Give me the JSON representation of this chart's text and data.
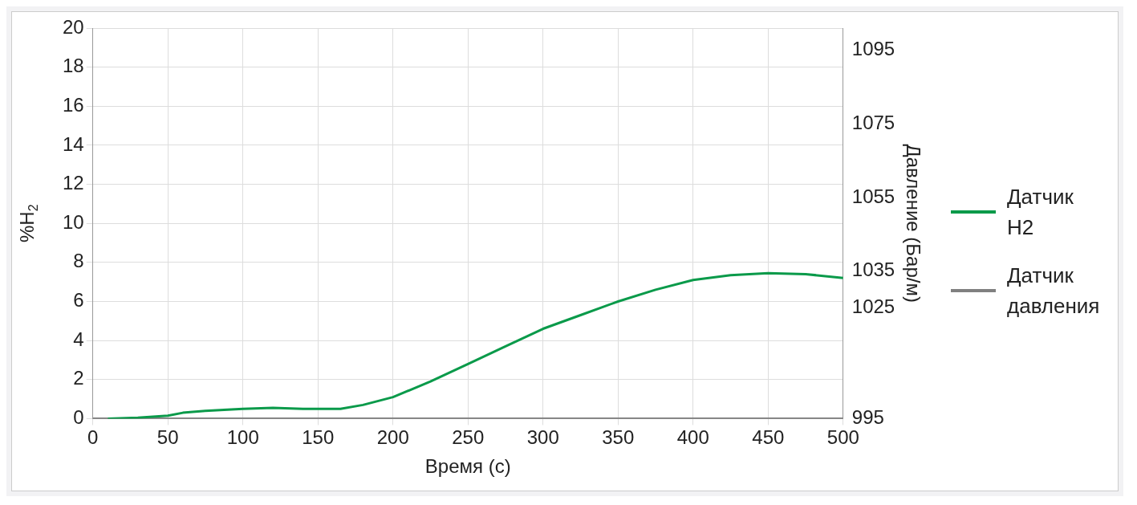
{
  "chart_data": {
    "type": "line",
    "xlabel": "Время (с)",
    "ylabel": "%H$_{2}$",
    "y2label": "Давление (Бар/м)",
    "xlim": [
      0,
      500
    ],
    "xticks": [
      0,
      50,
      100,
      150,
      200,
      250,
      300,
      350,
      400,
      450,
      500
    ],
    "ylim": [
      0,
      20
    ],
    "yticks": [
      0,
      2,
      4,
      6,
      8,
      10,
      12,
      14,
      16,
      18,
      20
    ],
    "y2lim": [
      995,
      1101
    ],
    "y2ticks": [
      995,
      1025,
      1035,
      1055,
      1075,
      1095
    ],
    "grid": true,
    "legend": "right",
    "marker": "none",
    "line_style": "solid",
    "series": [
      {
        "name": "Датчик H2",
        "color": "#0a9a4a",
        "x": [
          10,
          30,
          50,
          60,
          75,
          100,
          120,
          140,
          165,
          180,
          200,
          225,
          250,
          275,
          300,
          325,
          350,
          375,
          400,
          425,
          450,
          475,
          500
        ],
        "values": [
          0,
          0.05,
          0.15,
          0.3,
          0.4,
          0.5,
          0.55,
          0.5,
          0.5,
          0.7,
          1.1,
          1.9,
          2.8,
          3.7,
          4.6,
          5.3,
          6.0,
          6.6,
          7.1,
          7.35,
          7.45,
          7.4,
          7.2
        ]
      },
      {
        "name": "Датчик давления",
        "color": "#808080",
        "axis": "y2",
        "x": [
          0,
          500
        ],
        "values": [
          995,
          995
        ]
      }
    ]
  }
}
